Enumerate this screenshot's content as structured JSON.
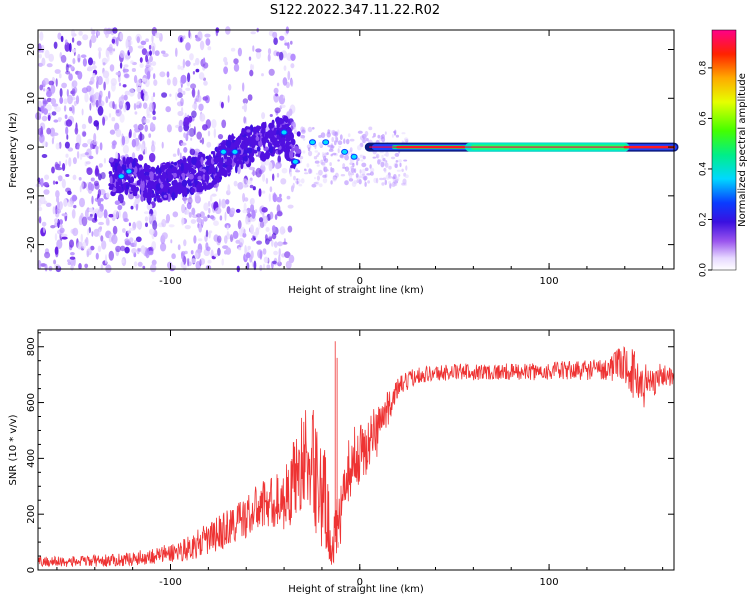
{
  "title": "S122.2022.347.11.22.R02",
  "chart_data": [
    {
      "type": "heatmap",
      "name": "spectrogram",
      "xlabel": "Height of straight line (km)",
      "ylabel": "Frequency (Hz)",
      "xlim": [
        -170,
        166
      ],
      "ylim": [
        -25,
        24
      ],
      "xticks": [
        -100,
        0,
        100
      ],
      "xtick_labels": [
        "-100",
        "0",
        "100"
      ],
      "yticks": [
        -20,
        -10,
        0,
        10,
        20
      ],
      "ytick_labels": [
        "-20",
        "-10",
        "0",
        "10",
        "20"
      ],
      "description_points": {
        "x": [
          -130,
          -120,
          -110,
          -100,
          -90,
          -80,
          -70,
          -60,
          -50,
          -40,
          -35,
          -30,
          -25,
          -20,
          -15,
          -10,
          -5,
          0,
          5,
          10,
          20,
          40,
          60,
          80,
          100,
          120,
          140,
          165
        ],
        "y": [
          -6,
          -6,
          -8,
          -7,
          -6,
          -5,
          -2,
          0,
          1,
          3,
          -2,
          3,
          0,
          1,
          2,
          -1,
          -1,
          -2,
          -1,
          0,
          0,
          0,
          0,
          0,
          0,
          0,
          0,
          0
        ]
      },
      "colorbar": {
        "label": "Normalized spectral amplitude",
        "range": [
          0,
          0.95
        ],
        "ticks": [
          0.0,
          0.2,
          0.4,
          0.6,
          0.8
        ],
        "tick_labels": [
          "0.0",
          "0.2",
          "0.4",
          "0.6",
          "0.8"
        ]
      }
    },
    {
      "type": "line",
      "name": "snr",
      "xlabel": "Height of straight line (km)",
      "ylabel": "SNR (10 * v/v)",
      "xlim": [
        -170,
        166
      ],
      "ylim": [
        0,
        860
      ],
      "xticks": [
        -100,
        0,
        100
      ],
      "xtick_labels": [
        "-100",
        "0",
        "100"
      ],
      "yticks": [
        0,
        200,
        400,
        600,
        800
      ],
      "ytick_labels": [
        "0",
        "200",
        "400",
        "600",
        "800"
      ],
      "color": "#ee3333",
      "envelope": {
        "x": [
          -170,
          -150,
          -130,
          -120,
          -100,
          -90,
          -80,
          -70,
          -60,
          -50,
          -40,
          -35,
          -30,
          -25,
          -20,
          -15,
          -10,
          -8,
          -5,
          0,
          5,
          10,
          15,
          20,
          30,
          50,
          70,
          90,
          110,
          130,
          140,
          145,
          150,
          160,
          166
        ],
        "y": [
          30,
          30,
          35,
          40,
          60,
          80,
          110,
          150,
          190,
          240,
          250,
          320,
          400,
          380,
          300,
          100,
          180,
          300,
          380,
          420,
          450,
          520,
          580,
          650,
          700,
          710,
          710,
          710,
          715,
          720,
          740,
          700,
          660,
          700,
          690
        ],
        "noise": [
          20,
          20,
          22,
          25,
          35,
          45,
          60,
          70,
          80,
          90,
          110,
          150,
          180,
          200,
          250,
          90,
          120,
          80,
          120,
          110,
          110,
          100,
          60,
          40,
          30,
          30,
          30,
          30,
          35,
          40,
          70,
          90,
          90,
          40,
          30
        ]
      }
    }
  ]
}
